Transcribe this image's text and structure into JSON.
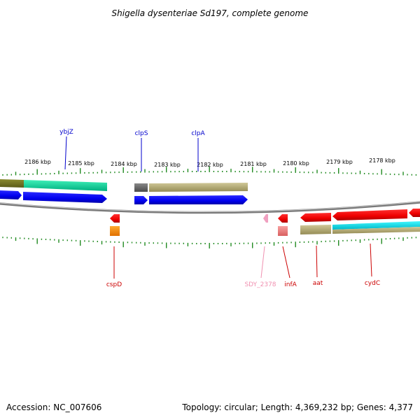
{
  "title": "Shigella dysenteriae Sd197, complete genome",
  "accession": "Accession: NC_007606",
  "topology": "Topology: circular; Length: 4,369,232 bp; Genes: 4,377",
  "scale_labels": [
    "2186 kbp",
    "2185 kbp",
    "2184 kbp",
    "2183 kbp",
    "2182 kbp",
    "2181 kbp",
    "2180 kbp",
    "2179 kbp",
    "2178 kbp"
  ],
  "top_gene_labels": [
    {
      "name": "ybjZ",
      "color": "#0000cc"
    },
    {
      "name": "clpS",
      "color": "#0000cc"
    },
    {
      "name": "clpA",
      "color": "#0000cc"
    }
  ],
  "bottom_gene_labels": [
    {
      "name": "cspD",
      "color": "#cc0000"
    },
    {
      "name": "SDY_2378",
      "color": "#f090b0"
    },
    {
      "name": "infA",
      "color": "#cc0000"
    },
    {
      "name": "aat",
      "color": "#cc0000"
    },
    {
      "name": "cydC",
      "color": "#cc0000"
    }
  ],
  "colors": {
    "forward_cds": "#0000ff",
    "reverse_cds": "#ff0000",
    "backbone": "#888888",
    "tick": "#228b22",
    "cog_green": "#00e0a0",
    "cog_olive": "#b8b078",
    "cog_gray": "#666666",
    "cog_orange": "#ff8800",
    "cog_cyan": "#00e8f0",
    "cog_pink": "#f08080"
  }
}
